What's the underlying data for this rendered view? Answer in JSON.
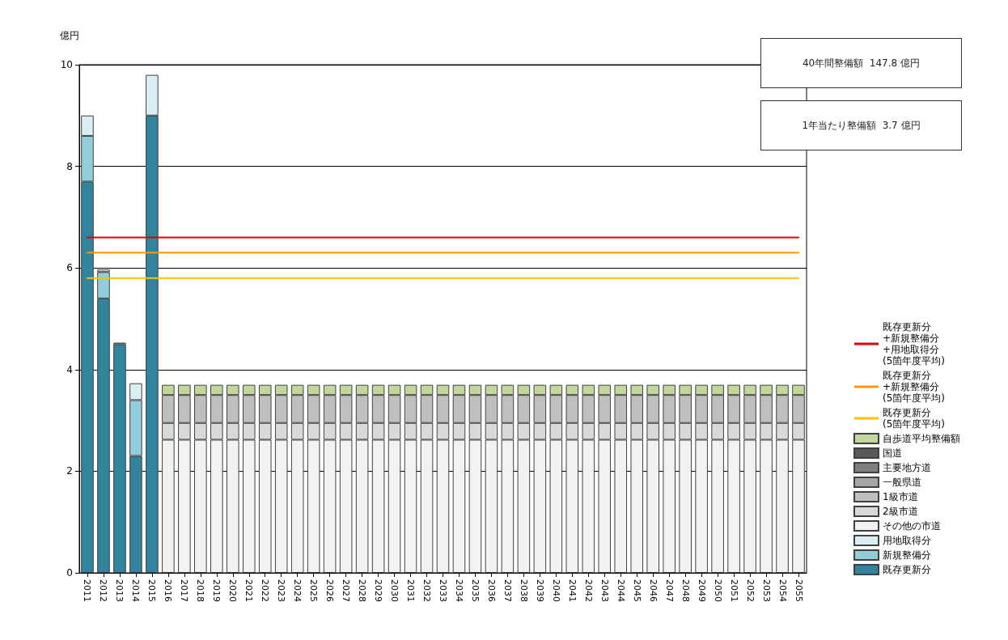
{
  "chart_data": {
    "type": "bar",
    "stacked": true,
    "ylabel": "億円",
    "legend": "right",
    "grid": "y",
    "marker": "none",
    "line_style": "solid",
    "ylim": [
      0,
      10
    ],
    "yticks": [
      0,
      2,
      4,
      6,
      8,
      10
    ],
    "annotations": [
      "40年間整備額  147.8 億円",
      "1年当たり整備額  3.7 億円"
    ],
    "categories": [
      "2011",
      "2012",
      "2013",
      "2014",
      "2015",
      "2016",
      "2017",
      "2018",
      "2019",
      "2020",
      "2021",
      "2022",
      "2023",
      "2024",
      "2025",
      "2026",
      "2027",
      "2028",
      "2029",
      "2030",
      "2031",
      "2032",
      "2033",
      "2034",
      "2035",
      "2036",
      "2037",
      "2038",
      "2039",
      "2040",
      "2041",
      "2042",
      "2043",
      "2044",
      "2045",
      "2046",
      "2047",
      "2048",
      "2049",
      "2050",
      "2051",
      "2052",
      "2053",
      "2054",
      "2055"
    ],
    "series": [
      {
        "name": "既存更新分",
        "color": "#31849b",
        "values": [
          7.7,
          5.4,
          4.5,
          2.3,
          9.0,
          0,
          0,
          0,
          0,
          0,
          0,
          0,
          0,
          0,
          0,
          0,
          0,
          0,
          0,
          0,
          0,
          0,
          0,
          0,
          0,
          0,
          0,
          0,
          0,
          0,
          0,
          0,
          0,
          0,
          0,
          0,
          0,
          0,
          0,
          0,
          0,
          0,
          0,
          0,
          0
        ]
      },
      {
        "name": "新規整備分",
        "color": "#92cddc",
        "values": [
          0.9,
          0.52,
          0.03,
          1.1,
          0,
          0,
          0,
          0,
          0,
          0,
          0,
          0,
          0,
          0,
          0,
          0,
          0,
          0,
          0,
          0,
          0,
          0,
          0,
          0,
          0,
          0,
          0,
          0,
          0,
          0,
          0,
          0,
          0,
          0,
          0,
          0,
          0,
          0,
          0,
          0,
          0,
          0,
          0,
          0,
          0
        ]
      },
      {
        "name": "用地取得分",
        "color": "#daeef3",
        "values": [
          0.4,
          0.05,
          0,
          0.33,
          0.8,
          0,
          0,
          0,
          0,
          0,
          0,
          0,
          0,
          0,
          0,
          0,
          0,
          0,
          0,
          0,
          0,
          0,
          0,
          0,
          0,
          0,
          0,
          0,
          0,
          0,
          0,
          0,
          0,
          0,
          0,
          0,
          0,
          0,
          0,
          0,
          0,
          0,
          0,
          0,
          0
        ]
      },
      {
        "name": "その他の市道",
        "color": "#f2f2f2",
        "values": [
          0,
          0,
          0,
          0,
          0,
          2.62,
          2.62,
          2.62,
          2.62,
          2.62,
          2.62,
          2.62,
          2.62,
          2.62,
          2.62,
          2.62,
          2.62,
          2.62,
          2.62,
          2.62,
          2.62,
          2.62,
          2.62,
          2.62,
          2.62,
          2.62,
          2.62,
          2.62,
          2.62,
          2.62,
          2.62,
          2.62,
          2.62,
          2.62,
          2.62,
          2.62,
          2.62,
          2.62,
          2.62,
          2.62,
          2.62,
          2.62,
          2.62,
          2.62,
          2.62
        ]
      },
      {
        "name": "2級市道",
        "color": "#d9d9d9",
        "values": [
          0,
          0,
          0,
          0,
          0,
          0.33,
          0.33,
          0.33,
          0.33,
          0.33,
          0.33,
          0.33,
          0.33,
          0.33,
          0.33,
          0.33,
          0.33,
          0.33,
          0.33,
          0.33,
          0.33,
          0.33,
          0.33,
          0.33,
          0.33,
          0.33,
          0.33,
          0.33,
          0.33,
          0.33,
          0.33,
          0.33,
          0.33,
          0.33,
          0.33,
          0.33,
          0.33,
          0.33,
          0.33,
          0.33,
          0.33,
          0.33,
          0.33,
          0.33,
          0.33
        ]
      },
      {
        "name": "1級市道",
        "color": "#bfbfbf",
        "values": [
          0,
          0,
          0,
          0,
          0,
          0.55,
          0.55,
          0.55,
          0.55,
          0.55,
          0.55,
          0.55,
          0.55,
          0.55,
          0.55,
          0.55,
          0.55,
          0.55,
          0.55,
          0.55,
          0.55,
          0.55,
          0.55,
          0.55,
          0.55,
          0.55,
          0.55,
          0.55,
          0.55,
          0.55,
          0.55,
          0.55,
          0.55,
          0.55,
          0.55,
          0.55,
          0.55,
          0.55,
          0.55,
          0.55,
          0.55,
          0.55,
          0.55,
          0.55,
          0.55
        ]
      },
      {
        "name": "一般県道",
        "color": "#a6a6a6",
        "values": [
          0,
          0,
          0,
          0,
          0,
          0,
          0,
          0,
          0,
          0,
          0,
          0,
          0,
          0,
          0,
          0,
          0,
          0,
          0,
          0,
          0,
          0,
          0,
          0,
          0,
          0,
          0,
          0,
          0,
          0,
          0,
          0,
          0,
          0,
          0,
          0,
          0,
          0,
          0,
          0,
          0,
          0,
          0,
          0,
          0
        ]
      },
      {
        "name": "主要地方道",
        "color": "#808080",
        "values": [
          0,
          0,
          0,
          0,
          0,
          0,
          0,
          0,
          0,
          0,
          0,
          0,
          0,
          0,
          0,
          0,
          0,
          0,
          0,
          0,
          0,
          0,
          0,
          0,
          0,
          0,
          0,
          0,
          0,
          0,
          0,
          0,
          0,
          0,
          0,
          0,
          0,
          0,
          0,
          0,
          0,
          0,
          0,
          0,
          0
        ]
      },
      {
        "name": "国道",
        "color": "#595959",
        "values": [
          0,
          0,
          0,
          0,
          0,
          0,
          0,
          0,
          0,
          0,
          0,
          0,
          0,
          0,
          0,
          0,
          0,
          0,
          0,
          0,
          0,
          0,
          0,
          0,
          0,
          0,
          0,
          0,
          0,
          0,
          0,
          0,
          0,
          0,
          0,
          0,
          0,
          0,
          0,
          0,
          0,
          0,
          0,
          0,
          0
        ]
      },
      {
        "name": "自歩道平均整備額",
        "color": "#c3d69b",
        "values": [
          0,
          0,
          0,
          0,
          0,
          0.2,
          0.2,
          0.2,
          0.2,
          0.2,
          0.2,
          0.2,
          0.2,
          0.2,
          0.2,
          0.2,
          0.2,
          0.2,
          0.2,
          0.2,
          0.2,
          0.2,
          0.2,
          0.2,
          0.2,
          0.2,
          0.2,
          0.2,
          0.2,
          0.2,
          0.2,
          0.2,
          0.2,
          0.2,
          0.2,
          0.2,
          0.2,
          0.2,
          0.2,
          0.2,
          0.2,
          0.2,
          0.2,
          0.2,
          0.2
        ]
      },
      {
        "type": "line",
        "name": "既存更新分\n+新規整備分\n+用地取得分\n(5箇年度平均)",
        "color": "#e00000",
        "values": [
          6.6,
          6.6,
          6.6,
          6.6,
          6.6,
          6.6,
          6.6,
          6.6,
          6.6,
          6.6,
          6.6,
          6.6,
          6.6,
          6.6,
          6.6,
          6.6,
          6.6,
          6.6,
          6.6,
          6.6,
          6.6,
          6.6,
          6.6,
          6.6,
          6.6,
          6.6,
          6.6,
          6.6,
          6.6,
          6.6,
          6.6,
          6.6,
          6.6,
          6.6,
          6.6,
          6.6,
          6.6,
          6.6,
          6.6,
          6.6,
          6.6,
          6.6,
          6.6,
          6.6,
          6.6
        ]
      },
      {
        "type": "line",
        "name": "既存更新分\n+新規整備分\n(5箇年度平均)",
        "color": "#ff9900",
        "values": [
          6.3,
          6.3,
          6.3,
          6.3,
          6.3,
          6.3,
          6.3,
          6.3,
          6.3,
          6.3,
          6.3,
          6.3,
          6.3,
          6.3,
          6.3,
          6.3,
          6.3,
          6.3,
          6.3,
          6.3,
          6.3,
          6.3,
          6.3,
          6.3,
          6.3,
          6.3,
          6.3,
          6.3,
          6.3,
          6.3,
          6.3,
          6.3,
          6.3,
          6.3,
          6.3,
          6.3,
          6.3,
          6.3,
          6.3,
          6.3,
          6.3,
          6.3,
          6.3,
          6.3,
          6.3
        ]
      },
      {
        "type": "line",
        "name": "既存更新分\n(5箇年度平均)",
        "color": "#ffc000",
        "values": [
          5.8,
          5.8,
          5.8,
          5.8,
          5.8,
          5.8,
          5.8,
          5.8,
          5.8,
          5.8,
          5.8,
          5.8,
          5.8,
          5.8,
          5.8,
          5.8,
          5.8,
          5.8,
          5.8,
          5.8,
          5.8,
          5.8,
          5.8,
          5.8,
          5.8,
          5.8,
          5.8,
          5.8,
          5.8,
          5.8,
          5.8,
          5.8,
          5.8,
          5.8,
          5.8,
          5.8,
          5.8,
          5.8,
          5.8,
          5.8,
          5.8,
          5.8,
          5.8,
          5.8,
          5.8
        ]
      }
    ]
  }
}
